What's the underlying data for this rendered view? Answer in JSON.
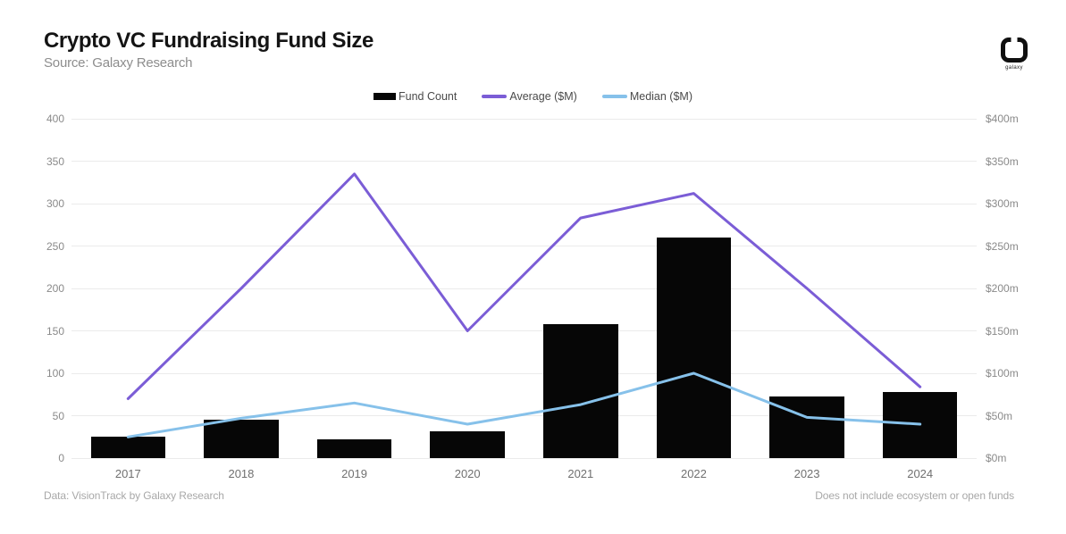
{
  "header": {
    "title": "Crypto VC Fundraising Fund Size",
    "subtitle": "Source: Galaxy Research",
    "logo_text": "galaxy"
  },
  "footer": {
    "left": "Data: VisionTrack by Galaxy Research",
    "right": "Does not include ecosystem or open funds"
  },
  "colors": {
    "bar": "#060606",
    "average_line": "#7b5dd6",
    "median_line": "#86c1ea",
    "gridline": "#ebebeb"
  },
  "chart_data": {
    "type": "bar",
    "title": "Crypto VC Fundraising Fund Size",
    "categories": [
      "2017",
      "2018",
      "2019",
      "2020",
      "2021",
      "2022",
      "2023",
      "2024"
    ],
    "series": [
      {
        "name": "Fund Count",
        "type": "bar",
        "color": "#060606",
        "axis": "left",
        "values": [
          25,
          45,
          22,
          32,
          158,
          260,
          73,
          78
        ]
      },
      {
        "name": "Average ($M)",
        "type": "line",
        "color": "#7b5dd6",
        "axis": "right",
        "values": [
          70,
          200,
          335,
          150,
          283,
          312,
          200,
          84
        ]
      },
      {
        "name": "Median ($M)",
        "type": "line",
        "color": "#86c1ea",
        "axis": "right",
        "values": [
          25,
          47,
          65,
          40,
          63,
          100,
          48,
          40
        ]
      }
    ],
    "left_axis": {
      "ticks": [
        0,
        50,
        100,
        150,
        200,
        250,
        300,
        350,
        400
      ],
      "min": 0,
      "max": 400
    },
    "right_axis": {
      "ticks": [
        "$0m",
        "$50m",
        "$100m",
        "$150m",
        "$200m",
        "$250m",
        "$300m",
        "$350m",
        "$400m"
      ]
    },
    "grid": true,
    "legend_position": "top-center",
    "xlabel": "",
    "ylabel": ""
  }
}
